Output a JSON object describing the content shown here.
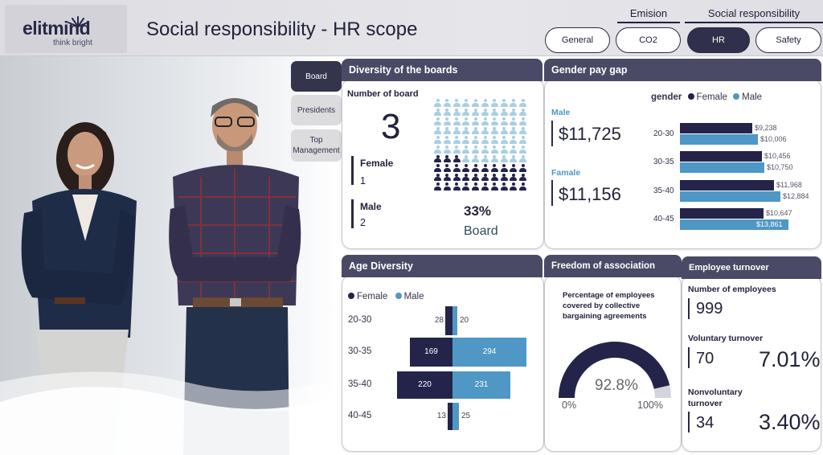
{
  "header": {
    "logo_text": "elitmind",
    "logo_tagline": "think bright",
    "title": "Social responsibility - HR scope",
    "group_emision": "Emision",
    "group_social": "Social responsibility",
    "nav": [
      "General",
      "CO2",
      "HR",
      "Safety"
    ],
    "active_nav": "HR"
  },
  "side_tabs": [
    "Board",
    "Presidents",
    "Top Management"
  ],
  "active_side_tab": "Board",
  "diversity": {
    "title": "Diversity of the boards",
    "number_label": "Number of board",
    "number_value": "3",
    "female_label": "Female",
    "female_value": "1",
    "male_label": "Male",
    "male_value": "2",
    "percent": "33%",
    "percent_label": "Board",
    "icon_grid": {
      "total": 100,
      "filled_from_bottom": 33,
      "filled_color": "#24244a",
      "empty_color": "#a9cfe2"
    }
  },
  "pay_gap": {
    "title": "Gender pay gap",
    "male_label": "Male",
    "male_value": "$11,725",
    "female_label": "Famale",
    "female_value": "$11,156",
    "legend_title": "gender",
    "legend_female": "Female",
    "legend_male": "Male"
  },
  "age_diversity": {
    "title": "Age Diversity",
    "legend_female": "Female",
    "legend_male": "Male"
  },
  "freedom": {
    "title": "Freedom of association",
    "description": "Percentage of employees covered by collective bargaining agreements",
    "value": "92.8%",
    "min_label": "0%",
    "max_label": "100%",
    "fraction": 0.928
  },
  "turnover": {
    "title": "Employee turnover",
    "employees_label": "Number of employees",
    "employees_value": "999",
    "voluntary_label": "Voluntary turnover",
    "voluntary_value": "70",
    "voluntary_pct": "7.01%",
    "nonvoluntary_label": "Nonvoluntary turnover",
    "nonvoluntary_value": "34",
    "nonvoluntary_pct": "3.40%"
  },
  "chart_data": [
    {
      "type": "bar",
      "orientation": "horizontal",
      "title": "Gender pay gap",
      "categories": [
        "20-30",
        "30-35",
        "35-40",
        "40-45"
      ],
      "series": [
        {
          "name": "Female",
          "values": [
            9238,
            10456,
            11968,
            10647
          ],
          "labels": [
            "$9,238",
            "$10,456",
            "$11,968",
            "$10,647"
          ],
          "color": "#24244a"
        },
        {
          "name": "Male",
          "values": [
            10006,
            10750,
            12884,
            13861
          ],
          "labels": [
            "$10,006",
            "$10,750",
            "$12,884",
            "$13,861"
          ],
          "color": "#4f97c4"
        }
      ],
      "legend": "top-right"
    },
    {
      "type": "bar",
      "orientation": "horizontal-diverging",
      "title": "Age Diversity",
      "categories": [
        "20-30",
        "30-35",
        "35-40",
        "40-45"
      ],
      "series": [
        {
          "name": "Female",
          "values": [
            28,
            169,
            220,
            13
          ],
          "color": "#24244a"
        },
        {
          "name": "Male",
          "values": [
            20,
            294,
            231,
            25
          ],
          "color": "#4f97c4"
        }
      ],
      "legend": "top-left"
    }
  ]
}
